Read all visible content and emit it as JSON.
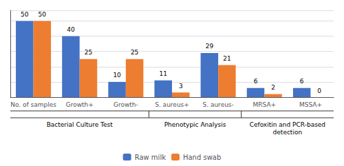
{
  "chart_data": {
    "type": "bar",
    "categories": [
      "No. of samples",
      "Growth+",
      "Growth-",
      "S. aureus+",
      "S. aureus-",
      "MRSA+",
      "MSSA+"
    ],
    "series": [
      {
        "name": "Raw milk",
        "color": "#4472C4",
        "values": [
          50,
          40,
          10,
          11,
          29,
          6,
          6
        ]
      },
      {
        "name": "Hand swab",
        "color": "#ED7D31",
        "values": [
          50,
          25,
          25,
          3,
          21,
          2,
          0
        ]
      }
    ],
    "ylim": [
      0,
      57
    ],
    "yticks": [
      0,
      10,
      20,
      30,
      40,
      50
    ],
    "grid": true,
    "tick_labels": "x",
    "data_labels": true,
    "legend": "bottom",
    "annotations": [
      {
        "text": "Bacterial Culture Test",
        "categories": [
          "No. of samples",
          "Growth+",
          "Growth-"
        ]
      },
      {
        "text": "Phenotypic Analysis",
        "categories": [
          "S. aureus+",
          "S. aureus-"
        ]
      },
      {
        "text": "Cefoxitin and PCR-based\ndetection",
        "categories": [
          "MRSA+",
          "MSSA+"
        ]
      }
    ]
  }
}
